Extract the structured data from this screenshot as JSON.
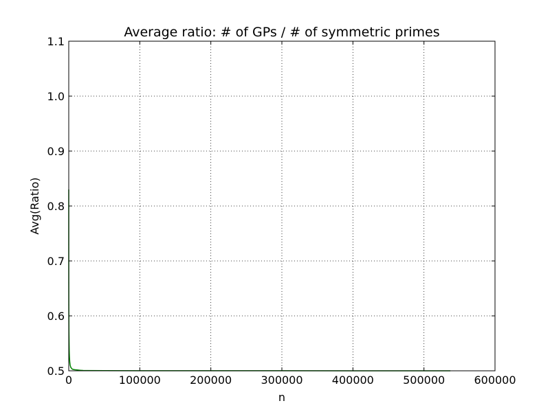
{
  "chart_data": {
    "type": "line",
    "title": "Average ratio: # of GPs / # of symmetric primes",
    "xlabel": "n",
    "ylabel": "Avg(Ratio)",
    "xlim": [
      0,
      600000
    ],
    "ylim": [
      0.5,
      1.1
    ],
    "x_ticks": [
      0,
      100000,
      200000,
      300000,
      400000,
      500000,
      600000
    ],
    "x_tick_labels": [
      "0",
      "100000",
      "200000",
      "300000",
      "400000",
      "500000",
      "600000"
    ],
    "y_ticks": [
      0.5,
      0.6,
      0.7,
      0.8,
      0.9,
      1.0,
      1.1
    ],
    "y_tick_labels": [
      "0.5",
      "0.6",
      "0.7",
      "0.8",
      "0.9",
      "1.0",
      "1.1"
    ],
    "grid": true,
    "series": [
      {
        "color": "#008000",
        "x": [
          2,
          10,
          50,
          100,
          200,
          300,
          500,
          700,
          1000,
          1500,
          2000,
          3000,
          5000,
          8000,
          12000,
          16000,
          20000,
          50000,
          100000,
          200000,
          300000,
          400000,
          500000,
          537000
        ],
        "y": [
          0.83,
          0.73,
          0.66,
          0.62,
          0.59,
          0.57,
          0.55,
          0.535,
          0.525,
          0.515,
          0.51,
          0.506,
          0.503,
          0.502,
          0.5015,
          0.501,
          0.5006,
          0.5003,
          0.5002,
          0.5001,
          0.5001,
          0.5,
          0.5,
          0.5
        ]
      }
    ]
  }
}
